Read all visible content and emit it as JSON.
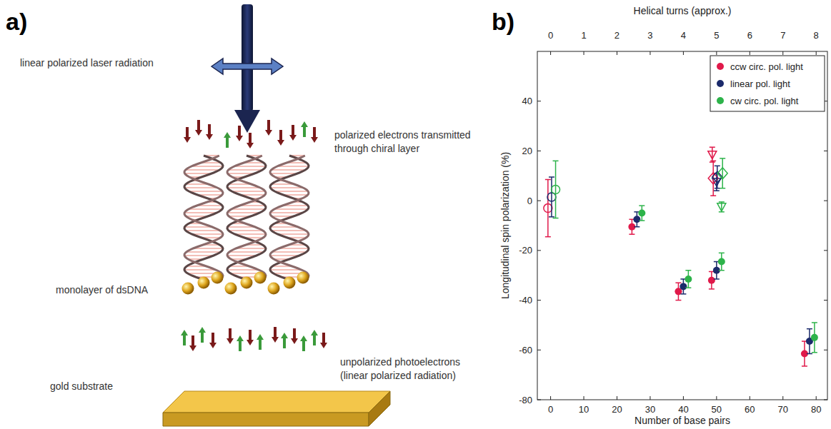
{
  "panels": {
    "a": "a)",
    "b": "b)"
  },
  "diagram": {
    "laser": "linear polarized laser radiation",
    "transmitted": [
      "polarized electrons transmitted",
      "through chiral layer"
    ],
    "monolayer": "monolayer of dsDNA",
    "photoelectrons": [
      "unpolarized photoelectrons",
      "(linear polarized radiation)"
    ],
    "substrate": "gold substrate"
  },
  "chart_data": {
    "type": "scatter",
    "x_label": "Number of base pairs",
    "y_label": "Longitudinal spin polarization (%)",
    "x2_label": "Helical turns (approx.)",
    "xlim": [
      -4,
      83.4
    ],
    "xticks": [
      0,
      10,
      20,
      30,
      40,
      50,
      60,
      70,
      80
    ],
    "x2lim": [
      -0.4,
      8.34
    ],
    "x2ticks": [
      0,
      1,
      2,
      3,
      4,
      5,
      6,
      7,
      8
    ],
    "ylim": [
      -80,
      60
    ],
    "yticks": [
      -80,
      -60,
      -40,
      -20,
      0,
      20,
      40
    ],
    "legend": "top-right",
    "series": [
      {
        "name": "ccw circ. pol. light",
        "color": "#e0194a",
        "marker": "circle",
        "x": [
          24.5,
          38.5,
          48.5,
          76.5
        ],
        "values": [
          -10.5,
          -36.5,
          -32,
          -61.5
        ],
        "errors": [
          3,
          3.5,
          3.5,
          5
        ]
      },
      {
        "name": "linear pol. light",
        "color": "#1b2a6b",
        "marker": "circle",
        "x": [
          26,
          40,
          50,
          78
        ],
        "values": [
          -7.5,
          -34.5,
          -28,
          -56.5
        ],
        "errors": [
          3,
          3,
          3.5,
          5
        ]
      },
      {
        "name": "cw circ. pol. light",
        "color": "#2db34a",
        "marker": "circle",
        "x": [
          27.5,
          41.5,
          51.5,
          79.5
        ],
        "values": [
          -5,
          -31.5,
          -24.5,
          -55
        ],
        "errors": [
          3,
          3.5,
          3.5,
          6
        ]
      },
      {
        "color": "#e0194a",
        "marker": "open-circle",
        "x": [
          -0.8
        ],
        "values": [
          -3
        ],
        "errors": [
          11.5
        ]
      },
      {
        "color": "#1b2a6b",
        "marker": "open-circle",
        "x": [
          0.3
        ],
        "values": [
          1.5
        ],
        "errors": [
          8
        ]
      },
      {
        "color": "#2db34a",
        "marker": "open-circle",
        "x": [
          1.5
        ],
        "values": [
          4.5
        ],
        "errors": [
          11.5
        ]
      },
      {
        "color": "#e0194a",
        "marker": "open-triangle-down",
        "x": [
          48.7
        ],
        "values": [
          18.5
        ],
        "errors": [
          3
        ]
      },
      {
        "color": "#1b2a6b",
        "marker": "open-triangle-down",
        "x": [
          50
        ],
        "values": [
          7.5
        ],
        "errors": [
          3.5
        ]
      },
      {
        "color": "#2db34a",
        "marker": "open-triangle-down",
        "x": [
          51.5
        ],
        "values": [
          -2.5
        ],
        "errors": [
          2
        ]
      },
      {
        "color": "#e0194a",
        "marker": "open-diamond",
        "x": [
          49
        ],
        "values": [
          9
        ],
        "errors": [
          7
        ]
      },
      {
        "color": "#1b2a6b",
        "marker": "open-diamond",
        "x": [
          50.2
        ],
        "values": [
          9.5
        ],
        "errors": [
          4.5
        ]
      },
      {
        "color": "#2db34a",
        "marker": "open-diamond",
        "x": [
          51.8
        ],
        "values": [
          11
        ],
        "errors": [
          6
        ]
      }
    ]
  }
}
